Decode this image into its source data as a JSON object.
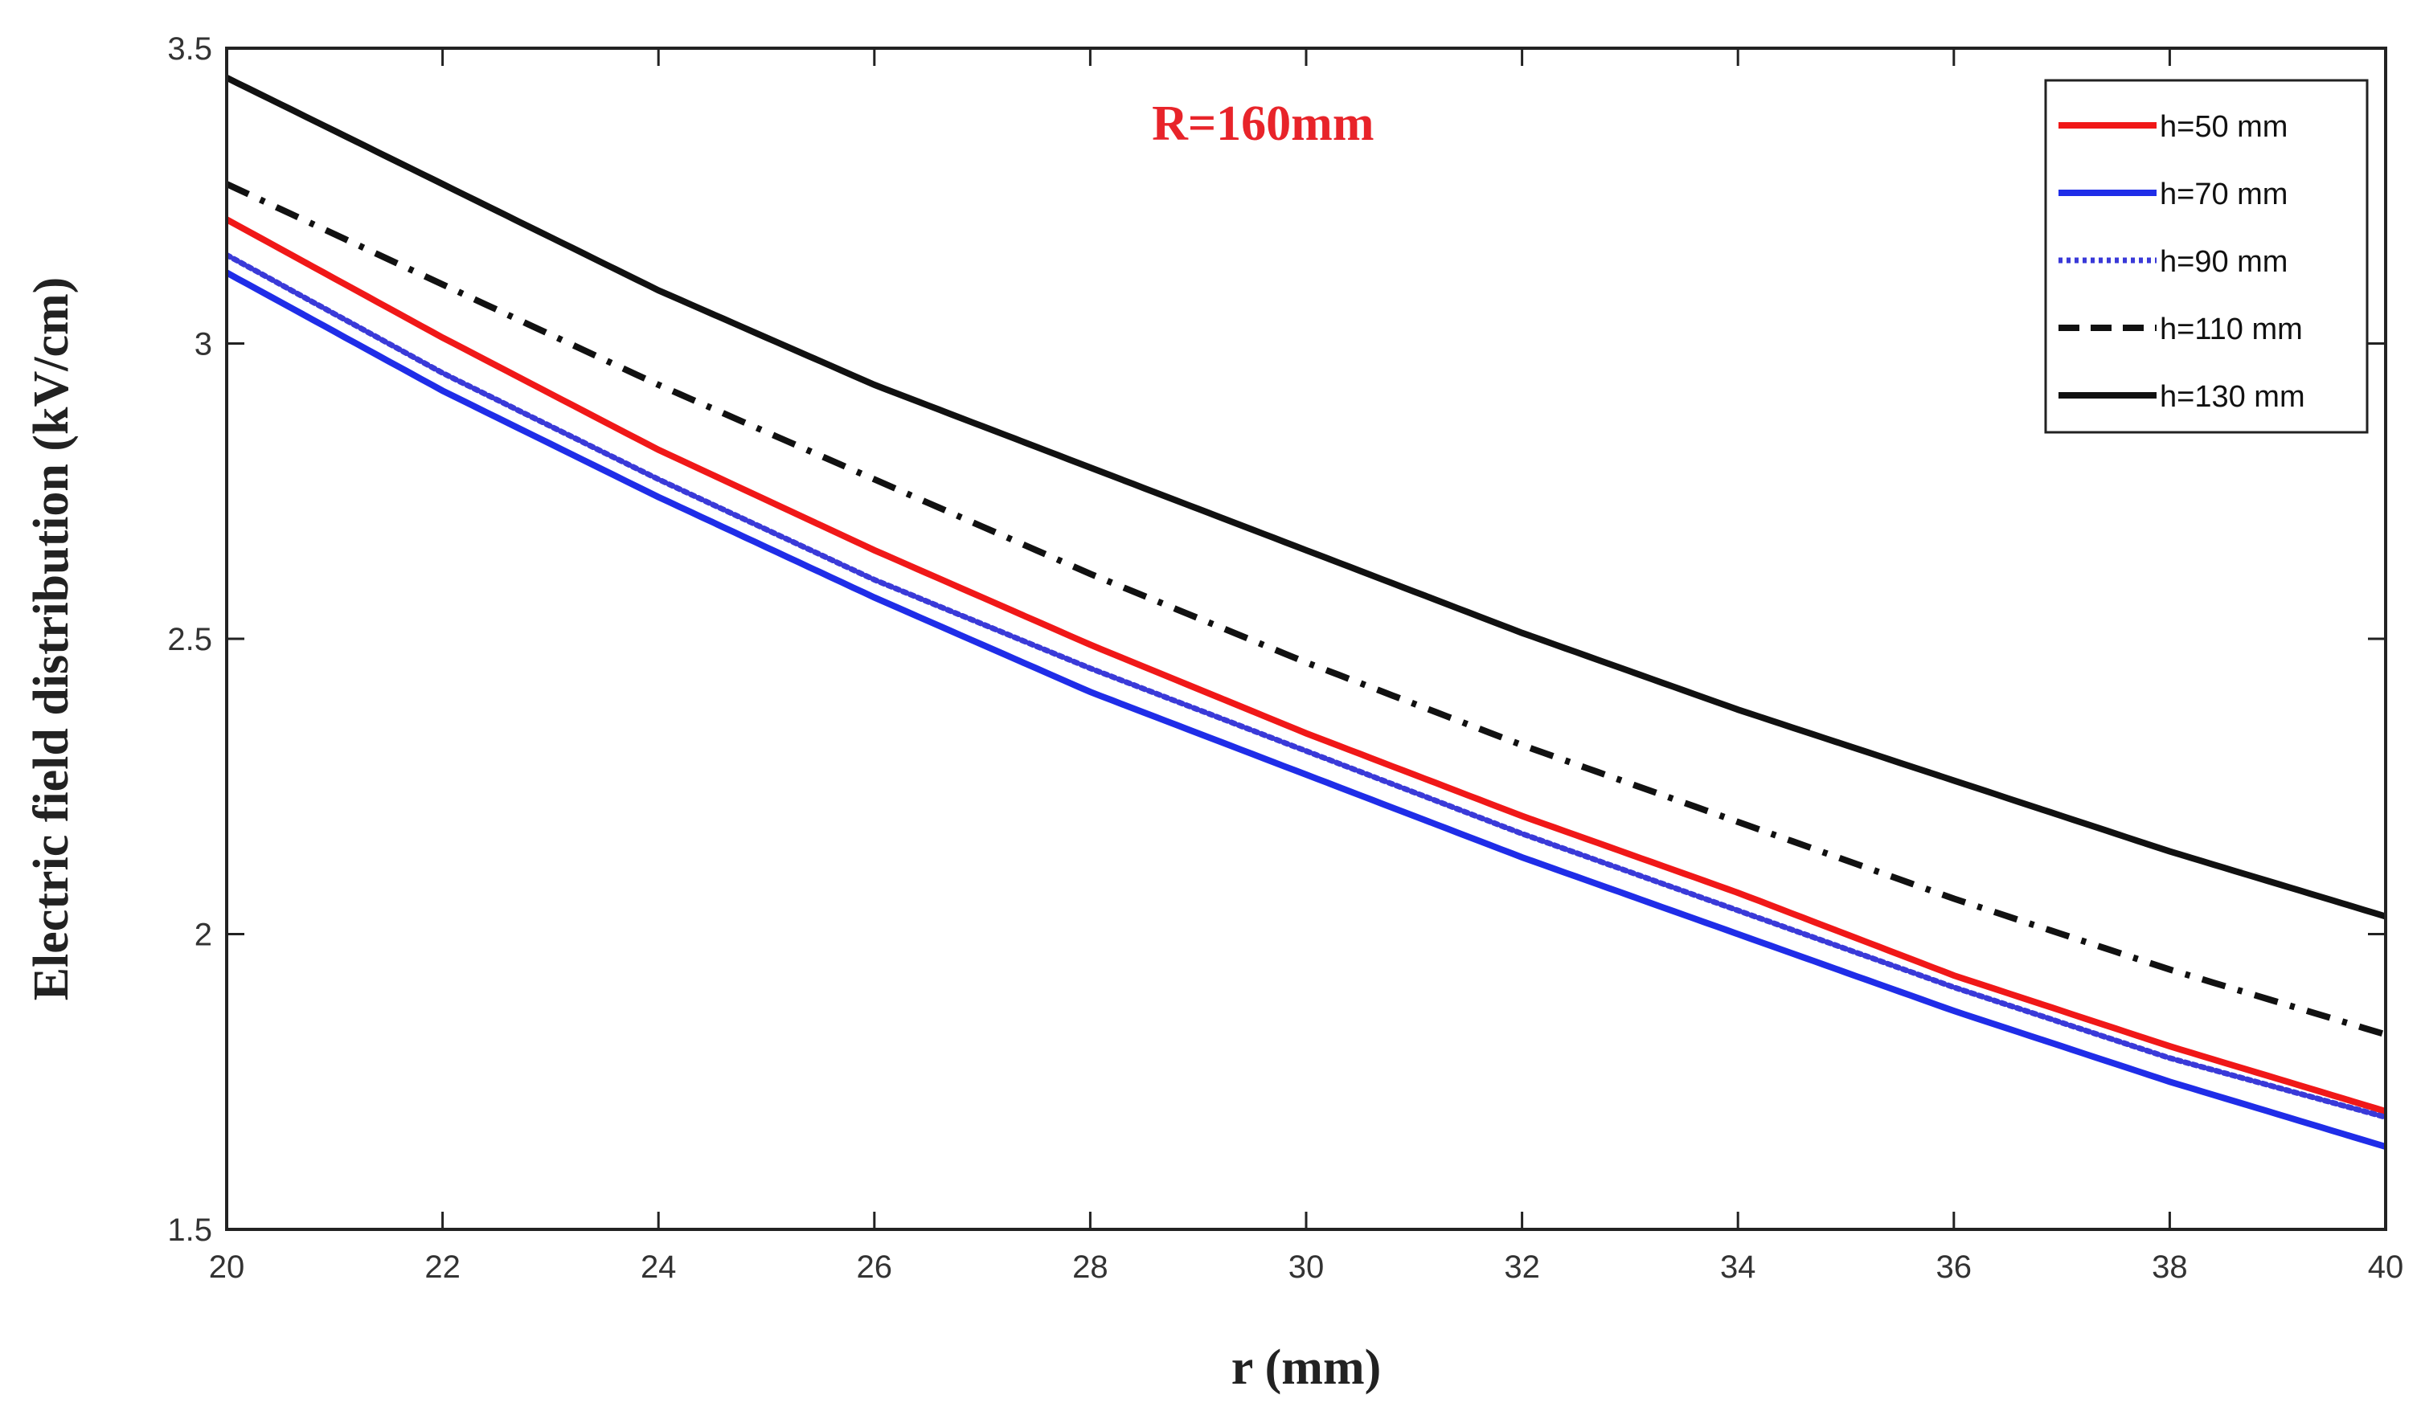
{
  "chart_data": {
    "type": "line",
    "title": "",
    "annotation": "R=160mm",
    "annotation_color": "#e8242a",
    "xlabel": "r (mm)",
    "ylabel": "Electric field distribution (kV/cm)",
    "xlim": [
      20,
      40
    ],
    "ylim": [
      1.5,
      3.5
    ],
    "xticks": [
      "20",
      "22",
      "24",
      "26",
      "28",
      "30",
      "32",
      "34",
      "36",
      "38",
      "40"
    ],
    "yticks": [
      "1.5",
      "2",
      "2.5",
      "3",
      "3.5"
    ],
    "grid": false,
    "legend_position": "top-right",
    "x": [
      20,
      22,
      24,
      26,
      28,
      30,
      32,
      34,
      36,
      38,
      40
    ],
    "series": [
      {
        "name": "h=50 mm",
        "color": "#f01818",
        "style": "solid",
        "values": [
          3.21,
          3.01,
          2.82,
          2.65,
          2.49,
          2.34,
          2.2,
          2.07,
          1.93,
          1.81,
          1.7
        ]
      },
      {
        "name": "h=70 mm",
        "color": "#1f2de8",
        "style": "solid",
        "values": [
          3.12,
          2.92,
          2.74,
          2.57,
          2.41,
          2.27,
          2.13,
          2.0,
          1.87,
          1.75,
          1.64
        ]
      },
      {
        "name": "h=90 mm",
        "color": "#3a3ad8",
        "style": "dotted",
        "values": [
          3.15,
          2.95,
          2.77,
          2.6,
          2.45,
          2.31,
          2.17,
          2.04,
          1.91,
          1.79,
          1.69
        ]
      },
      {
        "name": "h=110 mm",
        "color": "#111111",
        "style": "dashdot",
        "values": [
          3.27,
          3.1,
          2.93,
          2.77,
          2.61,
          2.46,
          2.32,
          2.19,
          2.06,
          1.94,
          1.83
        ]
      },
      {
        "name": "h=130 mm",
        "color": "#111111",
        "style": "solid",
        "values": [
          3.45,
          3.27,
          3.09,
          2.93,
          2.79,
          2.65,
          2.51,
          2.38,
          2.26,
          2.14,
          2.03
        ]
      }
    ]
  }
}
